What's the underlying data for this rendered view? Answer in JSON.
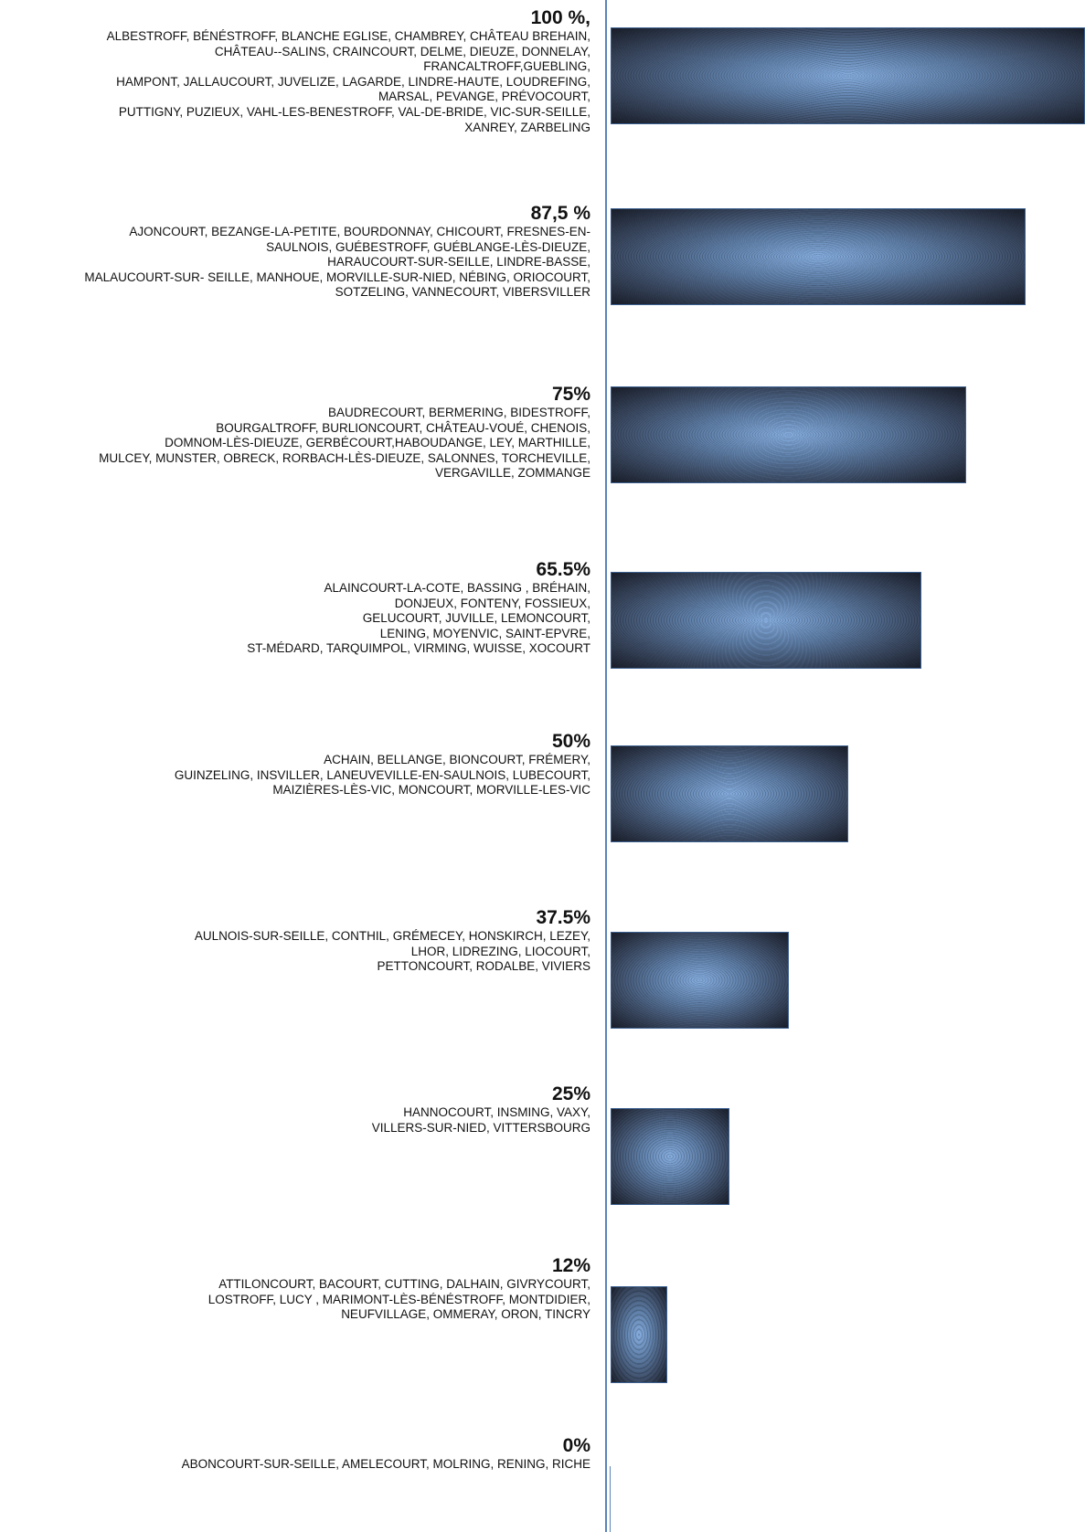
{
  "chart_data": {
    "type": "bar",
    "orientation": "horizontal",
    "xlim": [
      0,
      100
    ],
    "colors": {
      "bar_center": "#86aee0",
      "bar_edge": "#1a1f2b",
      "bar_border": "#3a5f8f",
      "axis": "#5b84b8"
    },
    "categories": [
      {
        "value": 100,
        "value_label": "100 %,",
        "names": "ALBESTROFF, BÉNÉSTROFF, BLANCHE EGLISE, CHAMBREY, CHÂTEAU BREHAIN,\nCHÂTEAU--SALINS, CRAINCOURT, DELME, DIEUZE, DONNELAY,\nFRANCALTROFF,GUEBLING,\nHAMPONT, JALLAUCOURT, JUVELIZE, LAGARDE, LINDRE-HAUTE, LOUDREFING,\nMARSAL, PEVANGE, PRÉVOCOURT,\nPUTTIGNY, PUZIEUX, VAHL-LES-BENESTROFF, VAL-DE-BRIDE, VIC-SUR-SEILLE,\nXANREY, ZARBELING"
      },
      {
        "value": 87.5,
        "value_label": "87,5 %",
        "names": "AJONCOURT, BEZANGE-LA-PETITE, BOURDONNAY, CHICOURT, FRESNES-EN-\nSAULNOIS, GUÉBESTROFF, GUÉBLANGE-LÈS-DIEUZE,\nHARAUCOURT-SUR-SEILLE, LINDRE-BASSE,\nMALAUCOURT-SUR- SEILLE, MANHOUE, MORVILLE-SUR-NIED, NÉBING, ORIOCOURT,\nSOTZELING, VANNECOURT, VIBERSVILLER"
      },
      {
        "value": 75,
        "value_label": "75%",
        "names": "BAUDRECOURT, BERMERING, BIDESTROFF,\nBOURGALTROFF, BURLIONCOURT, CHÂTEAU-VOUÉ, CHENOIS,\nDOMNOM-LÈS-DIEUZE, GERBÉCOURT,HABOUDANGE,  LEY, MARTHILLE,\nMULCEY, MUNSTER,  OBRECK, RORBACH-LÈS-DIEUZE, SALONNES, TORCHEVILLE,\nVERGAVILLE, ZOMMANGE"
      },
      {
        "value": 65.5,
        "value_label": "65.5%",
        "names": "ALAINCOURT-LA-COTE, BASSING , BRÉHAIN,\nDONJEUX, FONTENY, FOSSIEUX,\nGELUCOURT, JUVILLE, LEMONCOURT,\nLENING, MOYENVIC, SAINT-EPVRE,\nST-MÉDARD, TARQUIMPOL,  VIRMING, WUISSE, XOCOURT"
      },
      {
        "value": 50,
        "value_label": "50%",
        "names": "ACHAIN, BELLANGE, BIONCOURT, FRÉMERY,\nGUINZELING, INSVILLER, LANEUVEVILLE-EN-SAULNOIS, LUBECOURT,\nMAIZIÈRES-LÈS-VIC, MONCOURT, MORVILLE-LES-VIC"
      },
      {
        "value": 37.5,
        "value_label": "37.5%",
        "names": "AULNOIS-SUR-SEILLE, CONTHIL, GRÉMECEY, HONSKIRCH, LEZEY,\nLHOR, LIDREZING, LIOCOURT,\nPETTONCOURT, RODALBE, VIVIERS"
      },
      {
        "value": 25,
        "value_label": "25%",
        "names": "HANNOCOURT, INSMING, VAXY,\nVILLERS-SUR-NIED, VITTERSBOURG"
      },
      {
        "value": 12,
        "value_label": "12%",
        "names": "ATTILONCOURT, BACOURT, CUTTING, DALHAIN, GIVRYCOURT,\nLOSTROFF, LUCY , MARIMONT-LÈS-BÉNÉSTROFF, MONTDIDIER,\nNEUFVILLAGE, OMMERAY, ORON, TINCRY"
      },
      {
        "value": 0,
        "value_label": "0%",
        "names": "ABONCOURT-SUR-SEILLE, AMELECOURT, MOLRING, RENING, RICHE"
      }
    ]
  }
}
